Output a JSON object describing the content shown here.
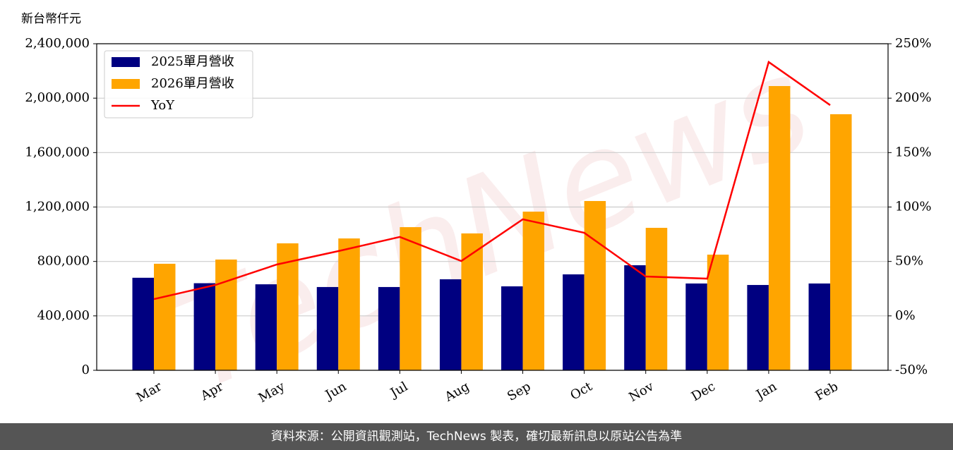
{
  "chart_data": {
    "type": "bar",
    "y_label": "新台幣仟元",
    "watermark": "TechNews",
    "footer": "資料來源：公開資訊觀測站，TechNews 製表，確切最新訊息以原站公告為準",
    "categories": [
      "Mar",
      "Apr",
      "May",
      "Jun",
      "Jul",
      "Aug",
      "Sep",
      "Oct",
      "Nov",
      "Dec",
      "Jan",
      "Feb"
    ],
    "series": [
      {
        "name": "2025單月營收",
        "color": "#000080",
        "type": "bar",
        "values": [
          680000,
          640000,
          632000,
          612000,
          612000,
          669000,
          617000,
          705000,
          772000,
          638000,
          627000,
          638000
        ]
      },
      {
        "name": "2026單月營收",
        "color": "#ffa500",
        "type": "bar",
        "values": [
          783000,
          814000,
          933000,
          969000,
          1052000,
          1006000,
          1166000,
          1244000,
          1047000,
          850000,
          2089000,
          1882000
        ]
      },
      {
        "name": "YoY",
        "color": "#ff0000",
        "type": "line",
        "axis": "y2",
        "values": [
          15.4,
          28.4,
          47.2,
          59.5,
          72.5,
          50.4,
          88.7,
          76.3,
          36.2,
          34.2,
          233.2,
          193.6
        ]
      }
    ],
    "ylim": [
      0,
      2400000
    ],
    "yticks": [
      0,
      {
        "value": 400000,
        "label": "400,000"
      },
      {
        "value": 800000,
        "label": "800,000"
      },
      {
        "value": 1200000,
        "label": "1,200,000"
      },
      {
        "value": 1600000,
        "label": "1,600,000"
      },
      {
        "value": 2000000,
        "label": "2,000,000"
      },
      {
        "value": 2400000,
        "label": "2,400,000"
      }
    ],
    "y2lim": [
      -50,
      250
    ],
    "y2ticks": [
      {
        "value": -50,
        "label": "-50%"
      },
      {
        "value": 0,
        "label": "0%"
      },
      {
        "value": 50,
        "label": "50%"
      },
      {
        "value": 100,
        "label": "100%"
      },
      {
        "value": 150,
        "label": "150%"
      },
      {
        "value": 200,
        "label": "200%"
      },
      {
        "value": 250,
        "label": "250%"
      }
    ],
    "grid": true,
    "legend": "upper-left"
  }
}
